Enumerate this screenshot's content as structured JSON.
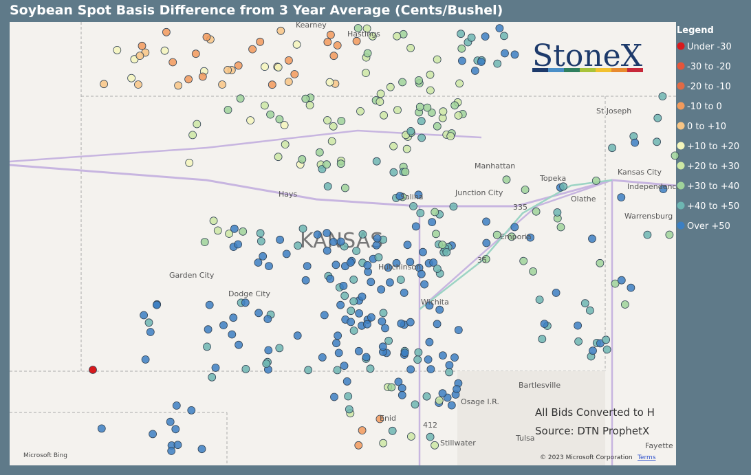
{
  "title": "Soybean Spot Basis Difference from 3 Year Average (Cents/Bushel)",
  "legend": {
    "title": "Legend",
    "items": [
      {
        "label": "Under -30",
        "color": "#d7191c"
      },
      {
        "label": "-30 to -20",
        "color": "#e4553a"
      },
      {
        "label": "-20 to -10",
        "color": "#e06a45"
      },
      {
        "label": "-10 to 0",
        "color": "#f29a5c"
      },
      {
        "label": "0 to +10",
        "color": "#f8c585"
      },
      {
        "label": "+10 to +20",
        "color": "#f4f6bc"
      },
      {
        "label": "+20 to +30",
        "color": "#cde8a4"
      },
      {
        "label": "+30 to +40",
        "color": "#9fd39a"
      },
      {
        "label": "+40 to +50",
        "color": "#6db6b2"
      },
      {
        "label": "Over +50",
        "color": "#3c7fc2"
      }
    ]
  },
  "logo": "StoneX",
  "map_labels": [
    "Kearney",
    "Hastings",
    "St Joseph",
    "Manhattan",
    "Topeka",
    "Kansas City",
    "Independence",
    "Hays",
    "Salina",
    "Junction City",
    "Olathe",
    "KANSAS",
    "Emporia",
    "Warrensburg",
    "Hutchinson",
    "Garden City",
    "Dodge City",
    "Wichita",
    "Bartlesville",
    "Osage I.R.",
    "Enid",
    "Stillwater",
    "Tulsa",
    "Fayette",
    "335",
    "35",
    "412"
  ],
  "notes": [
    "All Bids Converted to H",
    "Source: DTN ProphetX"
  ],
  "attribution": {
    "provider": "Microsoft Bing",
    "copyright": "© 2023 Microsoft Corporation",
    "terms": "Terms"
  }
}
